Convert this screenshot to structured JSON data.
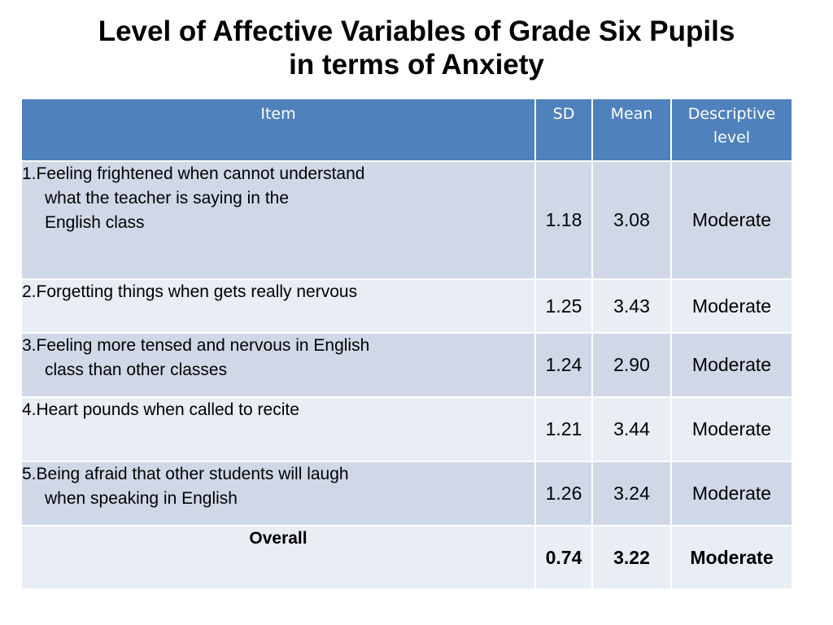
{
  "title": {
    "line1": "Level of Affective Variables of Grade Six Pupils",
    "line2": "in terms of Anxiety"
  },
  "table": {
    "headers": {
      "item": "Item",
      "sd": "SD",
      "mean": "Mean",
      "desc_line1": "Descriptive",
      "desc_line2": "level"
    },
    "rows": [
      {
        "lines": [
          "1.Feeling frightened when cannot understand",
          "what the teacher is  saying in the",
          "English class"
        ],
        "sd": "1.18",
        "mean": "3.08",
        "level": "Moderate"
      },
      {
        "lines": [
          "2.Forgetting things when gets really nervous"
        ],
        "sd": "1.25",
        "mean": "3.43",
        "level": "Moderate"
      },
      {
        "lines": [
          "3.Feeling more tensed and nervous in English",
          "class than other classes"
        ],
        "sd": "1.24",
        "mean": "2.90",
        "level": "Moderate"
      },
      {
        "lines": [
          "4.Heart pounds when called to recite"
        ],
        "sd": "1.21",
        "mean": "3.44",
        "level": "Moderate"
      },
      {
        "lines": [
          "5.Being afraid that other students will laugh",
          "when speaking in   English"
        ],
        "sd": "1.26",
        "mean": "3.24",
        "level": "Moderate"
      }
    ],
    "overall": {
      "label": "Overall",
      "sd": "0.74",
      "mean": "3.22",
      "level": "Moderate"
    }
  },
  "colors": {
    "header_bg": "#4f81bd",
    "row_odd": "#d0d8e8",
    "row_even": "#e9edf4"
  }
}
